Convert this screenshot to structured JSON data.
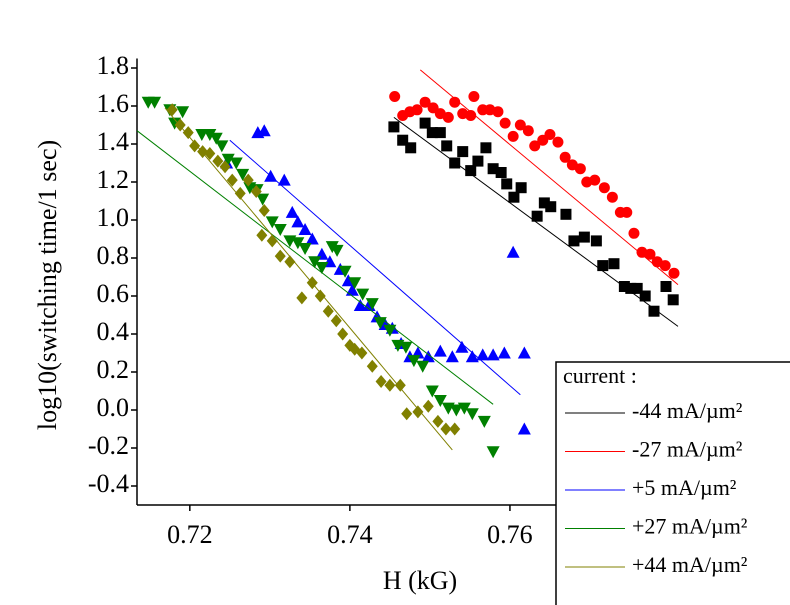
{
  "chart_data": {
    "type": "scatter",
    "xlabel": "H (kG)",
    "ylabel": "log10(switching time/1 sec)",
    "xlim": [
      0.7134,
      0.7825
    ],
    "xticks": [
      0.72,
      0.74,
      0.76
    ],
    "ylim": [
      -0.5,
      1.85
    ],
    "yticks": [
      -0.4,
      -0.2,
      {
        "value": 0,
        "label": "0.0"
      },
      0.2,
      0.4,
      0.6,
      0.8,
      {
        "value": 1,
        "label": "1.0"
      },
      1.2,
      1.4,
      1.6,
      1.8
    ],
    "legend_title": "current :",
    "legend": "lower right",
    "series": [
      {
        "name": "-44 mA/µm²",
        "color": "#000000",
        "marker": "square",
        "x": [
          0.7455,
          0.7466,
          0.7476,
          0.7494,
          0.7503,
          0.7513,
          0.7521,
          0.7531,
          0.7541,
          0.7551,
          0.756,
          0.757,
          0.7579,
          0.7589,
          0.7596,
          0.7605,
          0.7614,
          0.7634,
          0.7643,
          0.7651,
          0.767,
          0.768,
          0.7693,
          0.7708,
          0.7716,
          0.773,
          0.7743,
          0.7751,
          0.7759,
          0.7769,
          0.778,
          0.7795,
          0.7804
        ],
        "values": [
          1.49,
          1.42,
          1.38,
          1.51,
          1.46,
          1.46,
          1.39,
          1.3,
          1.36,
          1.26,
          1.31,
          1.38,
          1.27,
          1.25,
          1.19,
          1.12,
          1.17,
          1.02,
          1.09,
          1.07,
          1.03,
          0.89,
          0.91,
          0.89,
          0.76,
          0.77,
          0.65,
          0.64,
          0.64,
          0.6,
          0.52,
          0.65,
          0.58
        ],
        "fit_x": [
          0.7455,
          0.781
        ],
        "fit_values": [
          1.54,
          0.44
        ]
      },
      {
        "name": "-27 mA/µm²",
        "color": "#ff0000",
        "marker": "circle",
        "x": [
          0.7456,
          0.7466,
          0.7475,
          0.7484,
          0.7494,
          0.7504,
          0.7513,
          0.7523,
          0.7531,
          0.7541,
          0.7551,
          0.7555,
          0.7566,
          0.7575,
          0.7585,
          0.7594,
          0.7604,
          0.7613,
          0.7623,
          0.7631,
          0.7641,
          0.765,
          0.766,
          0.7669,
          0.7678,
          0.7688,
          0.7696,
          0.7706,
          0.7718,
          0.7728,
          0.7738,
          0.7746,
          0.7755,
          0.7765,
          0.7775,
          0.7784,
          0.7794,
          0.7805
        ],
        "values": [
          1.65,
          1.55,
          1.57,
          1.58,
          1.62,
          1.59,
          1.56,
          1.54,
          1.62,
          1.56,
          1.55,
          1.65,
          1.58,
          1.58,
          1.57,
          1.51,
          1.44,
          1.5,
          1.47,
          1.39,
          1.42,
          1.45,
          1.41,
          1.33,
          1.29,
          1.27,
          1.2,
          1.21,
          1.17,
          1.12,
          1.04,
          1.04,
          0.93,
          0.83,
          0.82,
          0.78,
          0.76,
          0.72
        ],
        "fit_x": [
          0.7488,
          0.781
        ],
        "fit_values": [
          1.79,
          0.66
        ]
      },
      {
        "name": "+5  mA/µm²",
        "color": "#0000ff",
        "marker": "triangle-up",
        "x": [
          0.7246,
          0.7285,
          0.7293,
          0.7301,
          0.7318,
          0.7328,
          0.7335,
          0.7344,
          0.7353,
          0.7365,
          0.7375,
          0.7388,
          0.7398,
          0.7403,
          0.7413,
          0.7424,
          0.7434,
          0.7444,
          0.7453,
          0.7464,
          0.7475,
          0.7485,
          0.7498,
          0.7513,
          0.7528,
          0.754,
          0.7553,
          0.7566,
          0.7579,
          0.7593,
          0.7604,
          0.7618,
          0.7618
        ],
        "values": [
          1.3,
          1.46,
          1.47,
          1.23,
          1.21,
          1.04,
          0.99,
          0.95,
          0.9,
          0.82,
          0.78,
          0.74,
          0.68,
          0.63,
          0.55,
          0.55,
          0.49,
          0.45,
          0.43,
          0.35,
          0.28,
          0.3,
          0.28,
          0.31,
          0.28,
          0.33,
          0.28,
          0.29,
          0.29,
          0.3,
          0.83,
          0.3,
          -0.1
        ],
        "fit_x": [
          0.725,
          0.7613
        ],
        "fit_values": [
          1.42,
          0.08
        ]
      },
      {
        "name": "+27  mA/µm²",
        "color": "#008000",
        "marker": "triangle-down",
        "x": [
          0.7148,
          0.7156,
          0.7175,
          0.7191,
          0.7181,
          0.7215,
          0.7225,
          0.7233,
          0.724,
          0.7248,
          0.7258,
          0.7266,
          0.7275,
          0.7284,
          0.7291,
          0.7303,
          0.7313,
          0.7325,
          0.7335,
          0.7344,
          0.7356,
          0.7365,
          0.7378,
          0.7384,
          0.7394,
          0.7406,
          0.7416,
          0.7428,
          0.7438,
          0.745,
          0.746,
          0.747,
          0.748,
          0.7491,
          0.7503,
          0.7513,
          0.7523,
          0.7533,
          0.7543,
          0.7553,
          0.7568,
          0.7579
        ],
        "values": [
          1.62,
          1.62,
          1.58,
          1.57,
          1.51,
          1.45,
          1.45,
          1.43,
          1.39,
          1.32,
          1.3,
          1.24,
          1.17,
          1.16,
          1.11,
          0.99,
          0.95,
          0.89,
          0.88,
          0.85,
          0.78,
          0.75,
          0.86,
          0.84,
          0.73,
          0.67,
          0.61,
          0.56,
          0.46,
          0.42,
          0.34,
          0.33,
          0.26,
          0.23,
          0.1,
          0.05,
          0.01,
          0,
          0.01,
          -0.02,
          -0.06,
          -0.22
        ],
        "fit_x": [
          0.7134,
          0.7579
        ],
        "fit_values": [
          1.47,
          0.03
        ]
      },
      {
        "name": "+44 mA/µm²",
        "color": "#808000",
        "marker": "diamond",
        "x": [
          0.7178,
          0.7188,
          0.7198,
          0.7206,
          0.7216,
          0.7225,
          0.7235,
          0.7244,
          0.7253,
          0.7263,
          0.7273,
          0.7283,
          0.7293,
          0.729,
          0.7303,
          0.7313,
          0.7325,
          0.734,
          0.7353,
          0.7363,
          0.7373,
          0.7383,
          0.7391,
          0.74,
          0.7406,
          0.7415,
          0.7428,
          0.7439,
          0.745,
          0.7463,
          0.7471,
          0.7485,
          0.7498,
          0.751,
          0.752,
          0.7531
        ],
        "values": [
          1.58,
          1.5,
          1.46,
          1.39,
          1.36,
          1.35,
          1.31,
          1.28,
          1.21,
          1.14,
          1.21,
          1.15,
          1.05,
          0.92,
          0.89,
          0.81,
          0.78,
          0.59,
          0.67,
          0.6,
          0.52,
          0.47,
          0.4,
          0.34,
          0.32,
          0.3,
          0.23,
          0.15,
          0.13,
          0.13,
          -0.02,
          -0.01,
          0.02,
          -0.06,
          -0.1,
          -0.1
        ],
        "fit_x": [
          0.7169,
          0.7528
        ],
        "fit_values": [
          1.59,
          -0.21
        ]
      }
    ]
  }
}
